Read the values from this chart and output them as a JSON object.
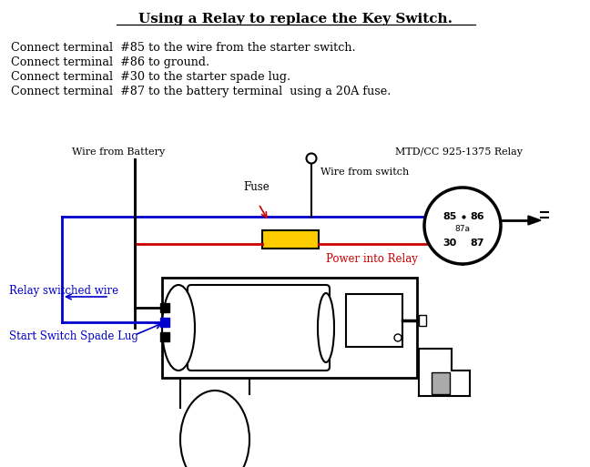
{
  "title": "Using a Relay to replace the Key Switch.",
  "instructions": [
    "Connect terminal  #85 to the wire from the starter switch.",
    "Connect terminal  #86 to ground.",
    "Connect terminal  #30 to the starter spade lug.",
    "Connect terminal  #87 to the battery terminal  using a 20A fuse."
  ],
  "bg_color": "#ffffff",
  "title_color": "#000000",
  "text_color": "#000000",
  "blue_color": "#0000cc",
  "red_color": "#cc0000",
  "black_color": "#000000",
  "yellow_color": "#ffcc00",
  "gray_color": "#aaaaaa",
  "relay_label": "MTD/CC 925-1375 Relay",
  "wire_from_battery": "Wire from Battery",
  "wire_from_switch": "Wire from switch",
  "fuse_label": "Fuse",
  "power_label": "Power into Relay",
  "relay_switched_wire": "Relay switched wire",
  "start_switch_spade_lug": "Start Switch Spade Lug"
}
